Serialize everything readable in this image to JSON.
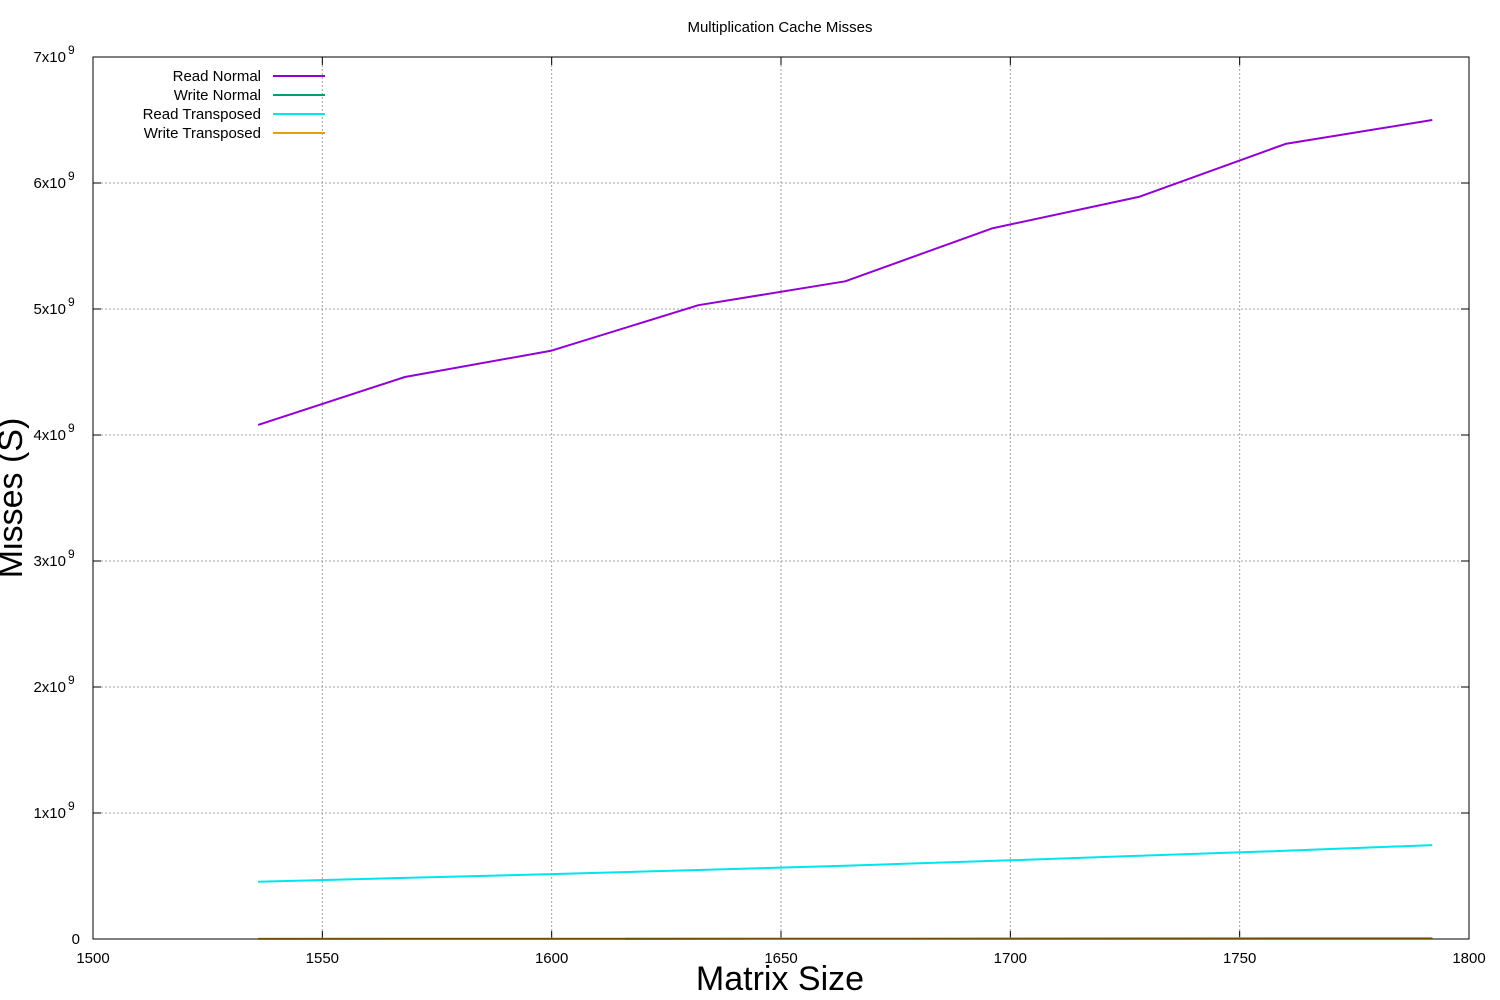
{
  "chart_data": {
    "type": "line",
    "title": "Multiplication Cache Misses",
    "xlabel": "Matrix Size",
    "ylabel": "Misses (S)",
    "xlim": [
      1500,
      1800
    ],
    "ylim": [
      0,
      7000000000
    ],
    "x_ticks": [
      {
        "value": 1500,
        "label": "1500"
      },
      {
        "value": 1550,
        "label": "1550"
      },
      {
        "value": 1600,
        "label": "1600"
      },
      {
        "value": 1650,
        "label": "1650"
      },
      {
        "value": 1700,
        "label": "1700"
      },
      {
        "value": 1750,
        "label": "1750"
      },
      {
        "value": 1800,
        "label": "1800"
      }
    ],
    "y_ticks": [
      {
        "value": 0,
        "label": "0",
        "exp": ""
      },
      {
        "value": 1000000000,
        "label": "1x10",
        "exp": "9"
      },
      {
        "value": 2000000000,
        "label": "2x10",
        "exp": "9"
      },
      {
        "value": 3000000000,
        "label": "3x10",
        "exp": "9"
      },
      {
        "value": 4000000000,
        "label": "4x10",
        "exp": "9"
      },
      {
        "value": 5000000000,
        "label": "5x10",
        "exp": "9"
      },
      {
        "value": 6000000000,
        "label": "6x10",
        "exp": "9"
      },
      {
        "value": 7000000000,
        "label": "7x10",
        "exp": "9"
      }
    ],
    "grid": true,
    "legend_position": "top-left",
    "series": [
      {
        "name": "Read Normal",
        "color": "#9400d3",
        "x": [
          1536,
          1568,
          1600,
          1632,
          1664,
          1696,
          1728,
          1760,
          1792
        ],
        "y": [
          4080000000,
          4460000000,
          4670000000,
          5030000000,
          5220000000,
          5640000000,
          5890000000,
          6310000000,
          6500000000
        ]
      },
      {
        "name": "Write Normal",
        "color": "#009e73",
        "x": [
          1616,
          1650,
          1700,
          1750,
          1792
        ],
        "y": [
          3000000,
          4000000,
          5000000,
          6000000,
          7000000
        ]
      },
      {
        "name": "Read Transposed",
        "color": "#00e5ee",
        "x": [
          1536,
          1568,
          1600,
          1632,
          1664,
          1696,
          1728,
          1760,
          1792
        ],
        "y": [
          455000000,
          485000000,
          515000000,
          548000000,
          582000000,
          620000000,
          660000000,
          700000000,
          745000000
        ]
      },
      {
        "name": "Write Transposed",
        "color": "#e69f00",
        "x": [
          1536,
          1600,
          1664,
          1728,
          1792
        ],
        "y": [
          2000000,
          3000000,
          4000000,
          5000000,
          6000000
        ]
      }
    ]
  }
}
